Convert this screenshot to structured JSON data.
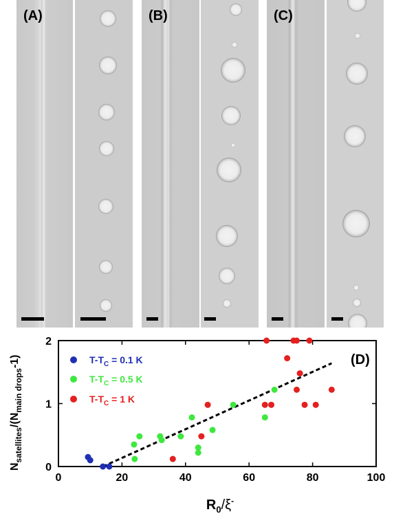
{
  "panels": [
    {
      "label": "(A)",
      "frames": [
        "filament",
        "droplets"
      ]
    },
    {
      "label": "(B)",
      "frames": [
        "filament",
        "droplets"
      ]
    },
    {
      "label": "(C)",
      "frames": [
        "filament",
        "droplets"
      ]
    }
  ],
  "chart_data": {
    "type": "scatter",
    "panel_label": "(D)",
    "xlabel_main": "R",
    "xlabel_sub": "0",
    "xlabel_rest": "/ξ",
    "xlabel_sup": "-",
    "ylabel_a": "N",
    "ylabel_a_sub": "satellites",
    "ylabel_b": "/(N",
    "ylabel_b_sub": "main drops",
    "ylabel_c": "-1)",
    "xlim": [
      0,
      100
    ],
    "ylim": [
      0,
      2
    ],
    "xticks": [
      0,
      20,
      40,
      60,
      80,
      100
    ],
    "yticks": [
      0,
      1,
      2
    ],
    "legend_position": "top-left",
    "series": [
      {
        "name_main": "T-T",
        "name_sub": "C",
        "name_rest": " = 0.1 K",
        "color": "#1f2fb5",
        "points": [
          [
            9.3,
            0.15
          ],
          [
            10,
            0.1
          ],
          [
            14,
            0
          ],
          [
            16,
            0
          ]
        ]
      },
      {
        "name_main": "T-T",
        "name_sub": "C",
        "name_rest": " = 0.5 K",
        "color": "#3ee83e",
        "points": [
          [
            23.8,
            0.35
          ],
          [
            25.5,
            0.48
          ],
          [
            24,
            0.12
          ],
          [
            32,
            0.48
          ],
          [
            32.5,
            0.42
          ],
          [
            38.5,
            0.48
          ],
          [
            42,
            0.78
          ],
          [
            44,
            0.3
          ],
          [
            44,
            0.22
          ],
          [
            48.5,
            0.58
          ],
          [
            55,
            0.98
          ],
          [
            65,
            0.78
          ],
          [
            68,
            1.22
          ]
        ]
      },
      {
        "name_main": "T-T",
        "name_sub": "C",
        "name_rest": " = 1 K",
        "color": "#e52020",
        "points": [
          [
            36,
            0.12
          ],
          [
            45,
            0.48
          ],
          [
            47,
            0.98
          ],
          [
            65,
            0.98
          ],
          [
            65.5,
            2.0
          ],
          [
            67,
            0.98
          ],
          [
            72,
            1.72
          ],
          [
            74,
            2.0
          ],
          [
            75,
            2.0
          ],
          [
            75,
            1.22
          ],
          [
            76,
            1.48
          ],
          [
            77.5,
            0.98
          ],
          [
            79,
            2.0
          ],
          [
            81,
            0.98
          ],
          [
            86,
            1.22
          ]
        ]
      }
    ],
    "fit_line": {
      "x": [
        14,
        86
      ],
      "y": [
        0,
        1.64
      ]
    }
  }
}
